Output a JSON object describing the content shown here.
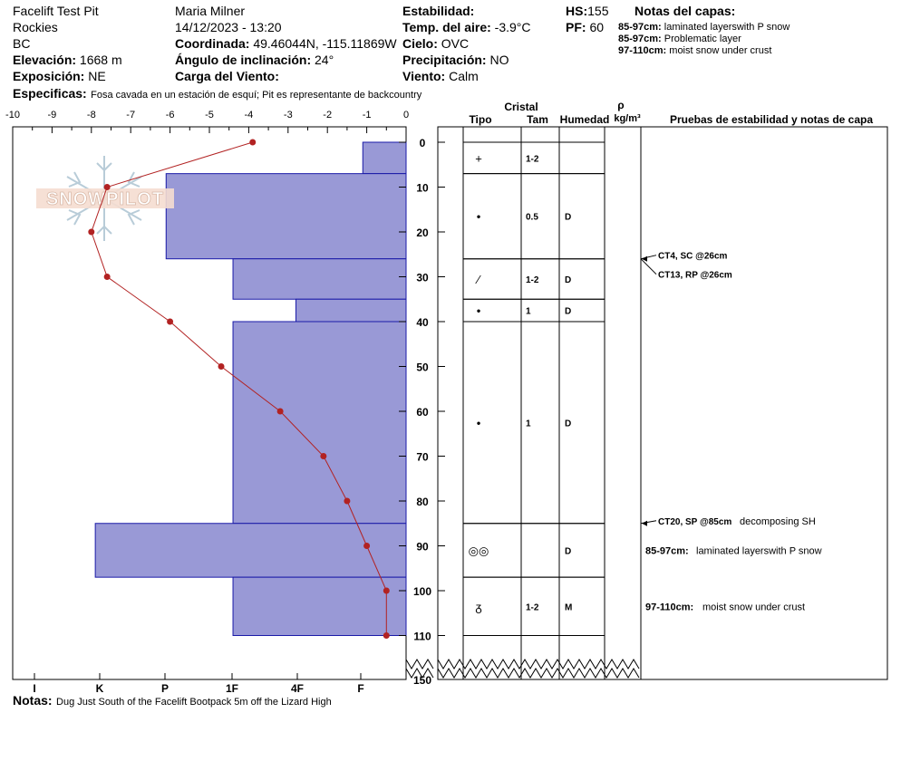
{
  "site": {
    "name": "Facelift Test Pit",
    "range": "Rockies",
    "state": "BC",
    "elevation_label": "Elevación:",
    "elevation": "1668 m",
    "aspect_label": "Exposición:",
    "aspect": "NE",
    "specifics_label": "Especificas:",
    "specifics": "Fosa cavada en un estación de esquí; Pit es representante de backcountry"
  },
  "observer": {
    "name": "Maria Milner",
    "datetime": "14/12/2023 - 13:20",
    "coord_label": "Coordinada:",
    "coord": "49.46044N, -115.11869W",
    "slope_label": "Ángulo de inclinación:",
    "slope": "24°",
    "wind_load_label": "Carga del Viento:",
    "wind_load": ""
  },
  "conditions": {
    "stability_label": "Estabilidad:",
    "stability": "",
    "air_temp_label": "Temp. del aire:",
    "air_temp": "-3.9°C",
    "sky_label": "Cielo:",
    "sky": "OVC",
    "precip_label": "Precipitación:",
    "precip": "NO",
    "wind_label": "Viento:",
    "wind": "Calm"
  },
  "hs_label": "HS:",
  "hs": "155",
  "pf_label": "PF:",
  "pf": "60",
  "layer_notes_title": "Notas del capas:",
  "layer_notes": [
    {
      "range": "85-97cm:",
      "text": "laminated layerswith P snow"
    },
    {
      "range": "85-97cm:",
      "text": "Problematic layer"
    },
    {
      "range": "97-110cm:",
      "text": "moist snow under crust"
    }
  ],
  "notes_label": "Notas:",
  "notes": "Dug Just South of the Facelift Bootpack 5m off the Lizard High",
  "logo_text": "SNOWPILOT",
  "table_headers": {
    "crystal": "Cristal",
    "type": "Tipo",
    "size": "Tam",
    "humidity": "Humedad",
    "rho": "ρ",
    "density_unit": "kg/m³",
    "tests": "Pruebas de estabilidad y notas de capa"
  },
  "chart_data": {
    "type": "profile",
    "temp_axis": {
      "min": -10,
      "max": 0,
      "ticks": [
        "-10",
        "-9",
        "-8",
        "-7",
        "-6",
        "-5",
        "-4",
        "-3",
        "-2",
        "-1",
        "0"
      ]
    },
    "hardness_axis": {
      "ticks": [
        "I",
        "K",
        "P",
        "1F",
        "4F",
        "F"
      ]
    },
    "depth_axis": {
      "ticks": [
        "0",
        "10",
        "20",
        "30",
        "40",
        "50",
        "60",
        "70",
        "80",
        "90",
        "100",
        "110",
        "150"
      ]
    },
    "temperature_profile": [
      {
        "depth": 0,
        "temp": -3.9
      },
      {
        "depth": 10,
        "temp": -7.6
      },
      {
        "depth": 20,
        "temp": -8.0
      },
      {
        "depth": 30,
        "temp": -7.6
      },
      {
        "depth": 40,
        "temp": -6.0
      },
      {
        "depth": 50,
        "temp": -4.7
      },
      {
        "depth": 60,
        "temp": -3.2
      },
      {
        "depth": 70,
        "temp": -2.1
      },
      {
        "depth": 80,
        "temp": -1.5
      },
      {
        "depth": 90,
        "temp": -1.0
      },
      {
        "depth": 100,
        "temp": -0.5
      },
      {
        "depth": 110,
        "temp": -0.5
      }
    ],
    "layers": [
      {
        "top": 0,
        "bottom": 7,
        "hardness_value": -1.1,
        "grain": "+",
        "size": "1-2",
        "moisture": ""
      },
      {
        "top": 7,
        "bottom": 26,
        "hardness_value": -6.1,
        "grain": "•",
        "size": "0.5",
        "moisture": "D"
      },
      {
        "top": 26,
        "bottom": 35,
        "hardness_value": -4.4,
        "grain": "⁄",
        "size": "1-2",
        "moisture": "D"
      },
      {
        "top": 35,
        "bottom": 40,
        "hardness_value": -2.8,
        "grain": "•",
        "size": "1",
        "moisture": "D"
      },
      {
        "top": 40,
        "bottom": 85,
        "hardness_value": -4.4,
        "grain": "•",
        "size": "1",
        "moisture": "D"
      },
      {
        "top": 85,
        "bottom": 97,
        "hardness_value": -7.9,
        "grain": "◎◎",
        "size": "",
        "moisture": "D"
      },
      {
        "top": 97,
        "bottom": 110,
        "hardness_value": -4.4,
        "grain": "ᵹ",
        "size": "1-2",
        "moisture": "M"
      }
    ],
    "tests": [
      {
        "depth": 26,
        "label": "CT4, SC @26cm"
      },
      {
        "depth": 26,
        "label": "CT13, RP @26cm"
      },
      {
        "depth": 85,
        "label": "CT20, SP @85cm",
        "note": "decomposing SH"
      }
    ],
    "layer_comments": [
      {
        "depth": 91,
        "range": "85-97cm:",
        "text": "laminated layerswith P snow"
      },
      {
        "depth": 103.5,
        "range": "97-110cm:",
        "text": "moist snow under crust"
      }
    ],
    "colors": {
      "hardness_fill": "#9999d6",
      "hardness_stroke": "#1a1aa8",
      "temp_line": "#b22222"
    }
  }
}
